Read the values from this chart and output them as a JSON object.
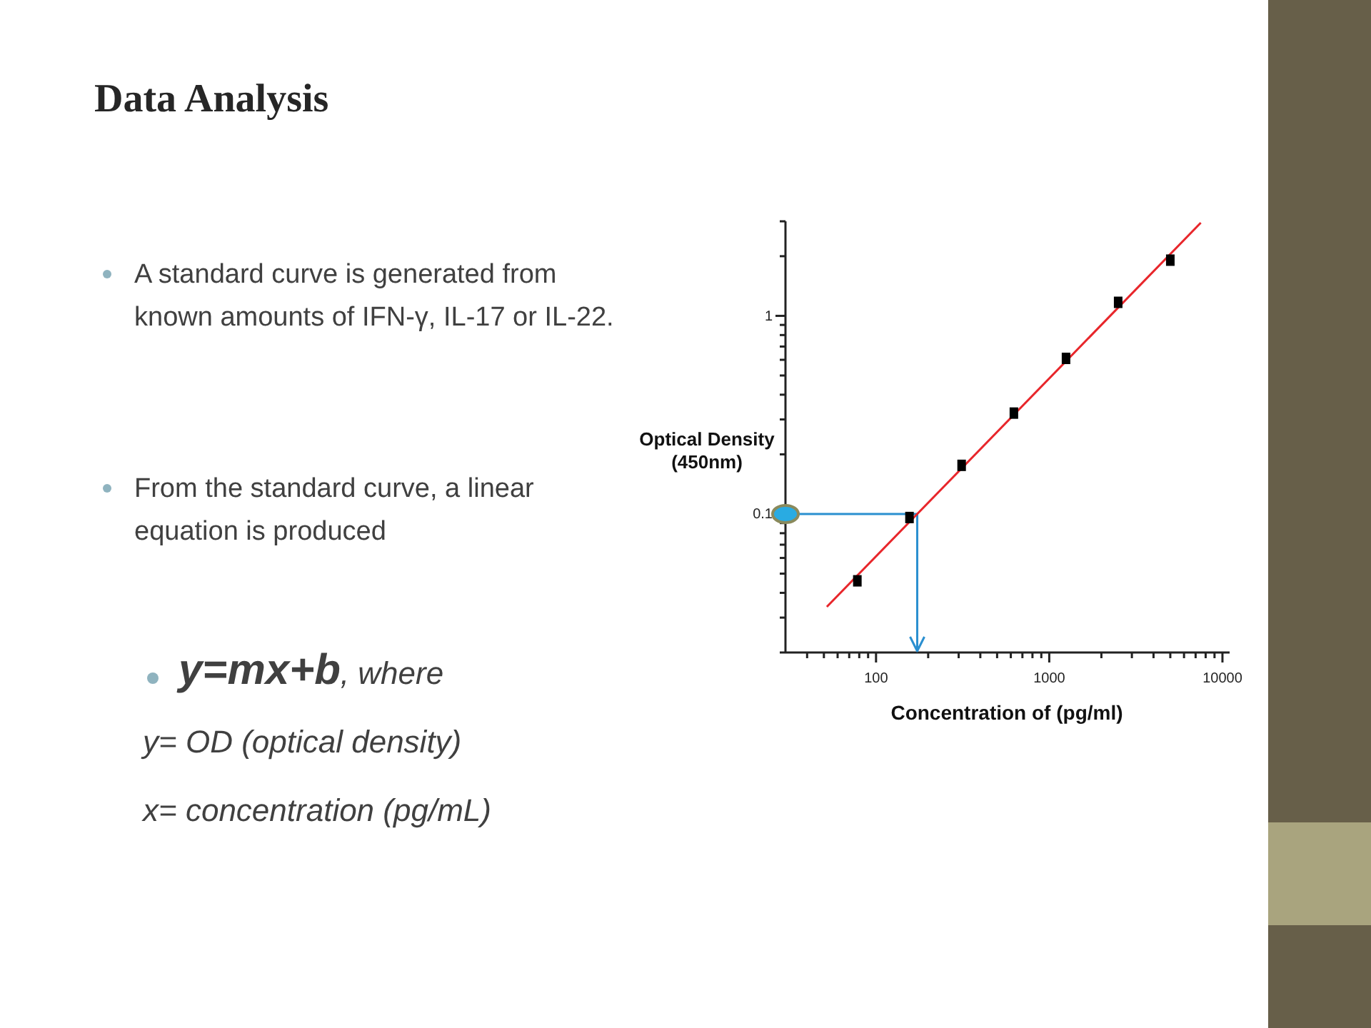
{
  "chart_data": {
    "type": "scatter",
    "title": "Data Analysis",
    "xlabel": "Concentration of (pg/ml)",
    "ylabel": "Optical Density\n(450nm)",
    "log": "xy",
    "xlim": [
      30,
      11000
    ],
    "ylim": [
      0.02,
      3
    ],
    "xticks": [
      {
        "value": 40,
        "label": null
      },
      {
        "value": 50,
        "label": null
      },
      {
        "value": 60,
        "label": null
      },
      {
        "value": 70,
        "label": null
      },
      {
        "value": 80,
        "label": null
      },
      {
        "value": 90,
        "label": null
      },
      100,
      {
        "value": 200,
        "label": null
      },
      {
        "value": 300,
        "label": null
      },
      {
        "value": 400,
        "label": null
      },
      {
        "value": 500,
        "label": null
      },
      {
        "value": 600,
        "label": null
      },
      {
        "value": 700,
        "label": null
      },
      {
        "value": 800,
        "label": null
      },
      {
        "value": 900,
        "label": null
      },
      1000,
      {
        "value": 2000,
        "label": null
      },
      {
        "value": 3000,
        "label": null
      },
      {
        "value": 4000,
        "label": null
      },
      {
        "value": 5000,
        "label": null
      },
      {
        "value": 6000,
        "label": null
      },
      {
        "value": 7000,
        "label": null
      },
      {
        "value": 8000,
        "label": null
      },
      {
        "value": 9000,
        "label": null
      },
      10000
    ],
    "yticks": [
      {
        "value": 0.02,
        "label": null
      },
      {
        "value": 0.03,
        "label": null
      },
      {
        "value": 0.04,
        "label": null
      },
      {
        "value": 0.05,
        "label": null
      },
      {
        "value": 0.06,
        "label": null
      },
      {
        "value": 0.07,
        "label": null
      },
      {
        "value": 0.08,
        "label": null
      },
      {
        "value": 0.09,
        "label": null
      },
      0.1,
      {
        "value": 0.2,
        "label": null
      },
      {
        "value": 0.3,
        "label": null
      },
      {
        "value": 0.4,
        "label": null
      },
      {
        "value": 0.5,
        "label": null
      },
      {
        "value": 0.6,
        "label": null
      },
      {
        "value": 0.7,
        "label": null
      },
      {
        "value": 0.8,
        "label": null
      },
      {
        "value": 0.9,
        "label": null
      },
      1,
      {
        "value": 2,
        "label": null
      },
      {
        "value": 3,
        "label": null
      }
    ],
    "grid": false,
    "series": [
      {
        "marker": "square",
        "color": "#000000",
        "x": [
          78,
          156,
          312,
          625,
          1250,
          2500,
          5000
        ],
        "values": [
          0.046,
          0.096,
          0.176,
          0.323,
          0.61,
          1.17,
          1.91
        ]
      },
      {
        "type": "line",
        "color": "#e8262b",
        "x": [
          52,
          7500
        ],
        "values": [
          0.034,
          2.95
        ]
      }
    ],
    "annotations": [
      "A standard curve is generated from known amounts of IFN-γ, IL-17 or IL-22.",
      "From the standard curve, a linear equation is produced",
      "y=mx+b, where",
      "y= OD (optical density)",
      "x= concentration (pg/mL)"
    ]
  }
}
